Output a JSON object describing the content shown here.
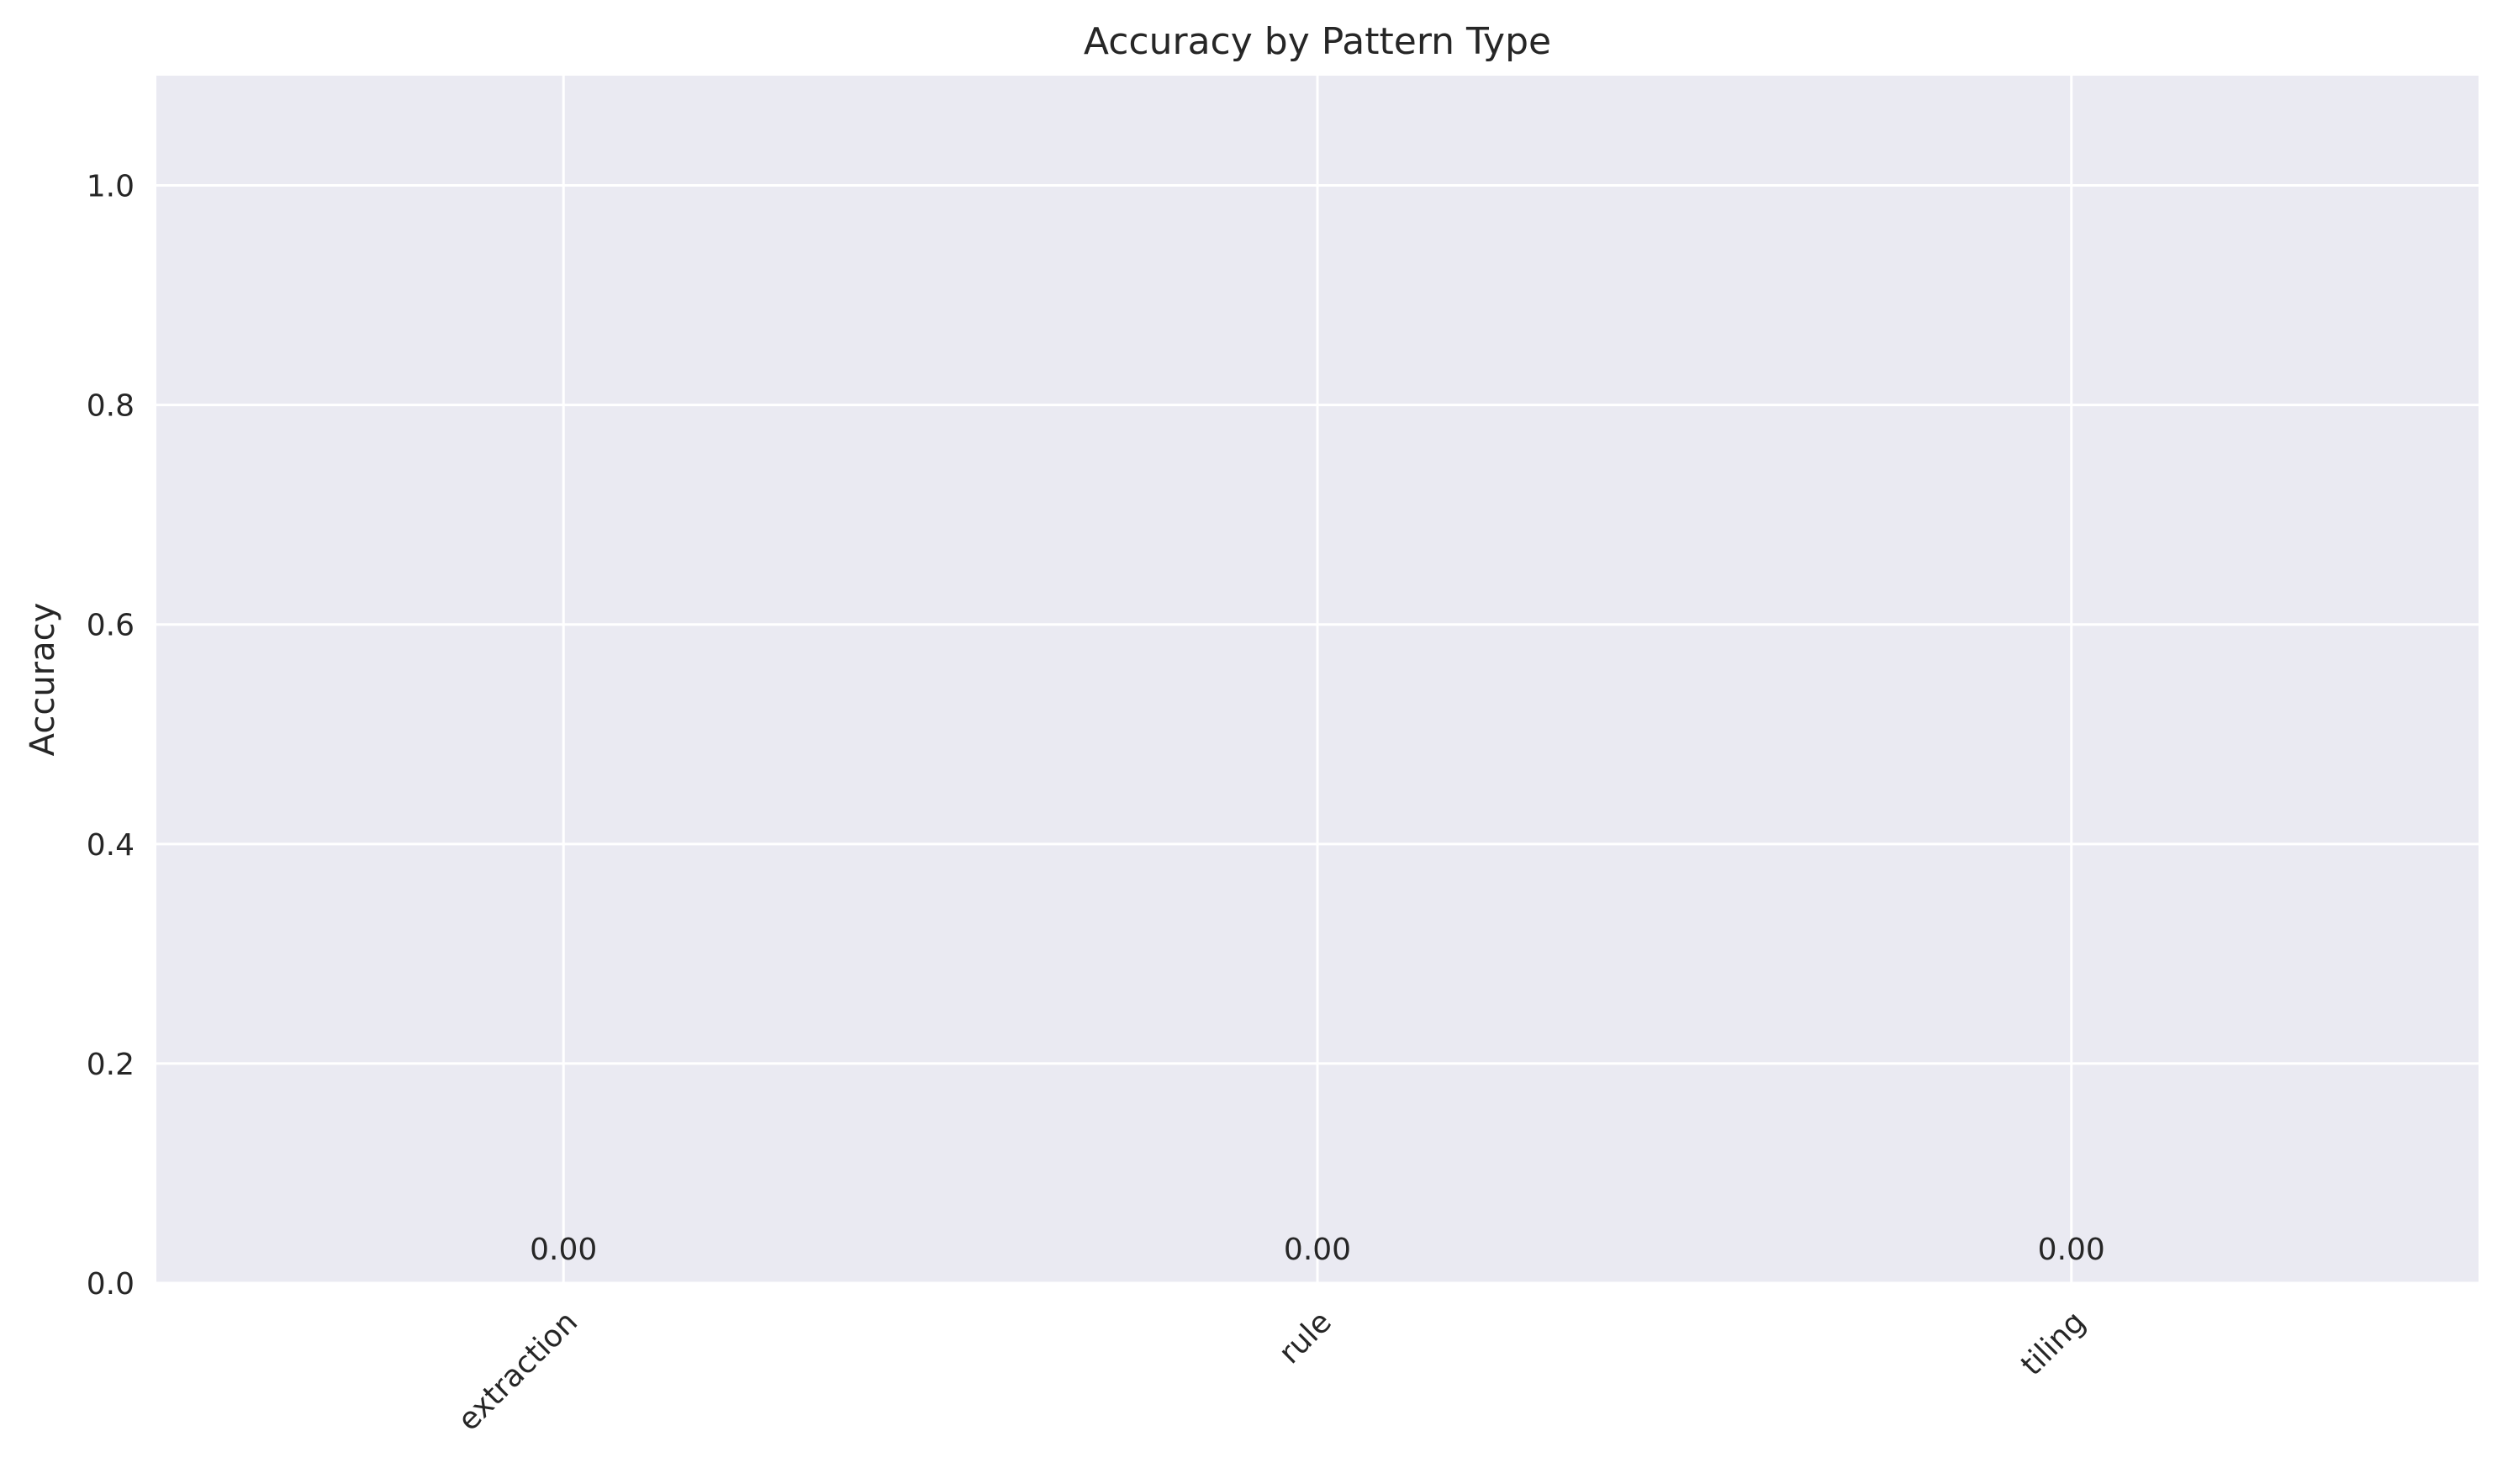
{
  "chart_data": {
    "type": "bar",
    "title": "Accuracy by Pattern Type",
    "xlabel": "",
    "ylabel": "Accuracy",
    "categories": [
      "extraction",
      "rule",
      "tiling"
    ],
    "values": [
      0.0,
      0.0,
      0.0
    ],
    "value_labels": [
      "0.00",
      "0.00",
      "0.00"
    ],
    "ylim": [
      0,
      1.1
    ],
    "yticks": [
      0.0,
      0.2,
      0.4,
      0.6,
      0.8,
      1.0
    ],
    "ytick_labels": [
      "0.0",
      "0.2",
      "0.4",
      "0.6",
      "0.8",
      "1.0"
    ],
    "grid": true,
    "x_tick_rotation": 45,
    "colors": {
      "plot_background": "#eaeaf2",
      "grid": "#ffffff",
      "text": "#262626",
      "bar": "#4c72b0"
    }
  }
}
